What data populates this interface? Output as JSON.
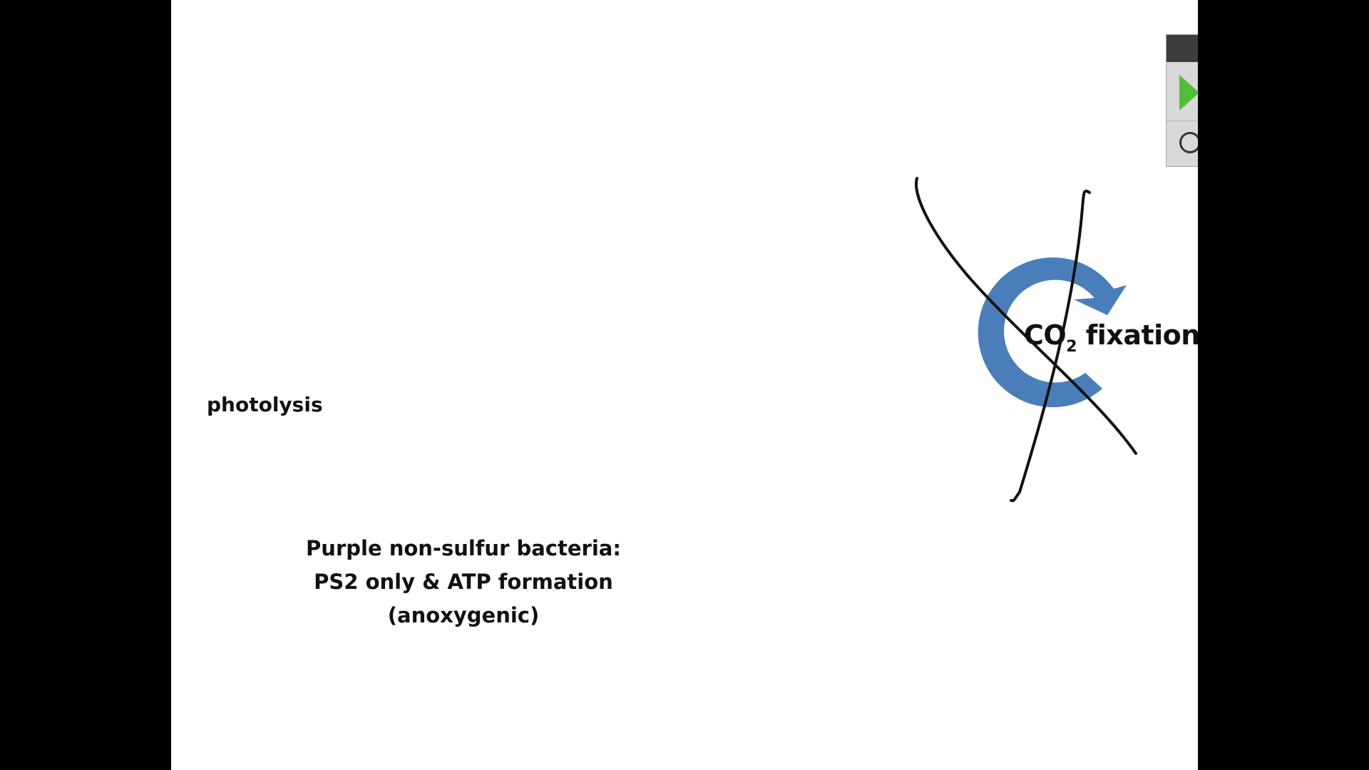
{
  "slide": {
    "photolysis_label": "photolysis",
    "bacteria_caption": {
      "line1": "Purple non-sulfur bacteria:",
      "line2": "PS2 only & ATP formation",
      "line3": "(anoxygenic)"
    },
    "co2_fixation": {
      "co": "CO",
      "subscript": "2",
      "word": " fixation",
      "crossed_out": true
    }
  },
  "colors": {
    "background": "#000000",
    "slide": "#ffffff",
    "cycle_arrow": "#4a7ebb",
    "strike_lines": "#111111",
    "play_icon": "#4fbf3a"
  },
  "icons": [
    "play-icon",
    "circle-icon"
  ]
}
